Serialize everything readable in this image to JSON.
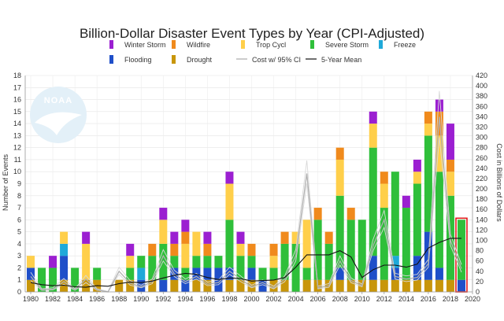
{
  "chart_data": {
    "type": "bar",
    "title": "Billion-Dollar Disaster Event Types by Year (CPI-Adjusted)",
    "ylabel": "Number of Events",
    "y2label": "Cost in Billions of Dollars",
    "ylim": [
      0,
      18
    ],
    "y2lim": [
      0,
      420
    ],
    "xlim": [
      1979.5,
      2020
    ],
    "x_ticks": [
      1980,
      1982,
      1984,
      1986,
      1988,
      1990,
      1992,
      1994,
      1996,
      1998,
      2000,
      2002,
      2004,
      2006,
      2008,
      2010,
      2012,
      2014,
      2016,
      2018,
      2020
    ],
    "y_ticks": [
      0,
      1,
      2,
      3,
      4,
      5,
      6,
      7,
      8,
      9,
      10,
      11,
      12,
      13,
      14,
      15,
      16,
      17,
      18
    ],
    "y2_ticks": [
      0,
      20,
      40,
      60,
      80,
      100,
      120,
      140,
      160,
      180,
      200,
      220,
      240,
      260,
      280,
      300,
      320,
      340,
      360,
      380,
      400,
      420
    ],
    "grid": true,
    "legend": [
      {
        "key": "drought",
        "name": "Drought",
        "color": "#c8960a",
        "kind": "box"
      },
      {
        "key": "flooding",
        "name": "Flooding",
        "color": "#1f4fc9",
        "kind": "box"
      },
      {
        "key": "freeze",
        "name": "Freeze",
        "color": "#1fa9d9",
        "kind": "box"
      },
      {
        "key": "severe",
        "name": "Severe Storm",
        "color": "#2fbf3a",
        "kind": "box"
      },
      {
        "key": "trop",
        "name": "Trop Cycl",
        "color": "#ffcf4a",
        "kind": "box"
      },
      {
        "key": "wildfire",
        "name": "Wildfire",
        "color": "#f08a1c",
        "kind": "box"
      },
      {
        "key": "winter",
        "name": "Winter Storm",
        "color": "#9b1fd1",
        "kind": "box"
      },
      {
        "key": "cost",
        "name": "Cost w/ 95% CI",
        "color": "#bbbbbb",
        "kind": "line"
      },
      {
        "key": "mean",
        "name": "5-Year Mean",
        "color": "#111111",
        "kind": "line"
      }
    ],
    "years": [
      1980,
      1981,
      1982,
      1983,
      1984,
      1985,
      1986,
      1987,
      1988,
      1989,
      1990,
      1991,
      1992,
      1993,
      1994,
      1995,
      1996,
      1997,
      1998,
      1999,
      2000,
      2001,
      2002,
      2003,
      2004,
      2005,
      2006,
      2007,
      2008,
      2009,
      2010,
      2011,
      2012,
      2013,
      2014,
      2015,
      2016,
      2017,
      2018,
      2019
    ],
    "series": [
      {
        "key": "drought",
        "values": [
          1,
          0,
          0,
          1,
          0,
          1,
          1,
          0,
          1,
          1,
          0,
          1,
          0,
          1,
          0,
          1,
          1,
          0,
          1,
          1,
          1,
          0,
          1,
          1,
          0,
          1,
          1,
          1,
          1,
          1,
          1,
          1,
          1,
          1,
          1,
          1,
          1,
          1,
          1,
          0
        ]
      },
      {
        "key": "flooding",
        "values": [
          1,
          0,
          0,
          2,
          0,
          0,
          0,
          0,
          0,
          0,
          1,
          0,
          1,
          1,
          1,
          1,
          1,
          2,
          1,
          0,
          1,
          1,
          0,
          0,
          0,
          0,
          0,
          0,
          1,
          0,
          0,
          2,
          0,
          1,
          0,
          2,
          4,
          1,
          0,
          1
        ]
      },
      {
        "key": "freeze",
        "values": [
          0,
          0,
          0,
          1,
          0,
          0,
          0,
          0,
          0,
          0,
          1,
          0,
          0,
          0,
          0,
          0,
          0,
          0,
          0,
          0,
          0,
          0,
          0,
          0,
          0,
          0,
          0,
          0,
          0,
          0,
          0,
          0,
          0,
          1,
          0,
          0,
          0,
          0,
          0,
          0
        ]
      },
      {
        "key": "severe",
        "values": [
          0,
          2,
          2,
          0,
          2,
          0,
          1,
          0,
          0,
          1,
          1,
          2,
          3,
          1,
          1,
          1,
          1,
          1,
          4,
          2,
          1,
          1,
          1,
          3,
          4,
          1,
          5,
          3,
          6,
          5,
          5,
          9,
          6,
          7,
          6,
          6,
          8,
          8,
          7,
          5
        ]
      },
      {
        "key": "trop",
        "values": [
          1,
          0,
          0,
          1,
          0,
          3,
          0,
          0,
          0,
          1,
          0,
          0,
          2,
          0,
          2,
          2,
          0,
          0,
          3,
          1,
          0,
          0,
          1,
          0,
          1,
          4,
          0,
          0,
          3,
          0,
          0,
          2,
          2,
          0,
          0,
          1,
          1,
          3,
          2,
          0
        ]
      },
      {
        "key": "wildfire",
        "values": [
          0,
          0,
          0,
          0,
          0,
          0,
          0,
          0,
          0,
          0,
          0,
          1,
          0,
          1,
          1,
          0,
          1,
          0,
          0,
          0,
          1,
          0,
          1,
          1,
          0,
          0,
          1,
          1,
          1,
          1,
          0,
          0,
          1,
          0,
          0,
          0,
          1,
          2,
          1,
          0
        ]
      },
      {
        "key": "winter",
        "values": [
          0,
          0,
          1,
          0,
          0,
          1,
          0,
          0,
          0,
          1,
          0,
          0,
          1,
          1,
          1,
          0,
          1,
          0,
          1,
          1,
          0,
          0,
          0,
          0,
          0,
          0,
          0,
          0,
          0,
          0,
          0,
          1,
          0,
          0,
          1,
          1,
          0,
          1,
          3,
          0
        ]
      }
    ],
    "cost": [
      30,
      4,
      5,
      20,
      4,
      25,
      4,
      0,
      40,
      17,
      10,
      20,
      70,
      35,
      20,
      30,
      15,
      18,
      40,
      25,
      10,
      18,
      8,
      25,
      70,
      230,
      8,
      12,
      60,
      22,
      12,
      90,
      140,
      30,
      25,
      28,
      55,
      340,
      100,
      45
    ],
    "cost_ci_low": [
      22,
      3,
      4,
      15,
      3,
      18,
      3,
      0,
      34,
      13,
      8,
      16,
      60,
      30,
      16,
      25,
      12,
      14,
      34,
      20,
      8,
      14,
      6,
      20,
      60,
      210,
      6,
      9,
      52,
      18,
      10,
      80,
      125,
      25,
      20,
      23,
      48,
      300,
      90,
      38
    ],
    "cost_ci_high": [
      38,
      6,
      8,
      26,
      6,
      32,
      6,
      1,
      48,
      22,
      13,
      25,
      82,
      42,
      25,
      36,
      19,
      23,
      48,
      31,
      13,
      23,
      11,
      31,
      82,
      255,
      11,
      16,
      70,
      27,
      15,
      102,
      158,
      36,
      31,
      34,
      63,
      390,
      112,
      53
    ],
    "mean": [
      18,
      14,
      12,
      13,
      10,
      9,
      12,
      11,
      16,
      19,
      18,
      21,
      27,
      32,
      36,
      34,
      28,
      24,
      27,
      26,
      21,
      22,
      23,
      28,
      48,
      72,
      72,
      72,
      80,
      68,
      28,
      43,
      52,
      52,
      48,
      54,
      85,
      96,
      104,
      104
    ],
    "highlight_year": 2019
  },
  "logo": {
    "text": "NOAA"
  }
}
